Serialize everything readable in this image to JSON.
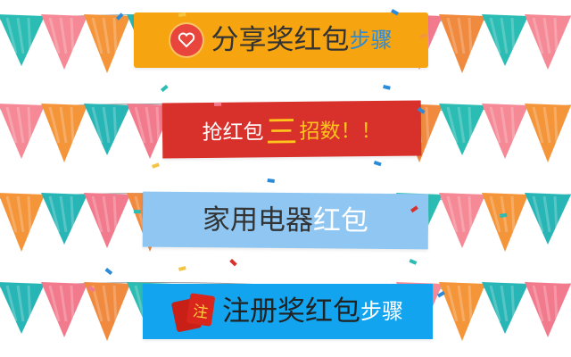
{
  "banners": [
    {
      "title_main": "分享奖红包",
      "title_suffix": "步骤",
      "icon": "heart-icon",
      "colors": {
        "bg": "#f7a411",
        "main": "#333333",
        "suffix": "#2b8bd8",
        "icon_bg": "#e8453c"
      }
    },
    {
      "title_pre": "抢红包",
      "title_big": "三",
      "title_post": "招数！！",
      "colors": {
        "bg": "#d8312b",
        "pre": "#ffffff",
        "big": "#ffc51c",
        "post": "#ffc51c"
      }
    },
    {
      "title_main": "家用电器",
      "title_suffix": "红包",
      "colors": {
        "bg": "#8fc7f2",
        "main": "#333333",
        "suffix": "#ffffff"
      }
    },
    {
      "badge_text": "注",
      "title_main": "注册奖红包",
      "title_suffix": "步骤",
      "icon": "red-envelope-icon",
      "colors": {
        "bg": "#13a4ef",
        "main": "#222222",
        "suffix": "#ffffff",
        "envelope": "#d9261c"
      }
    }
  ],
  "flag_colors": [
    "#2bbcb3",
    "#f58a96",
    "#f4953a",
    "#28b5b5",
    "#f27a8d",
    "#f08a3e"
  ]
}
